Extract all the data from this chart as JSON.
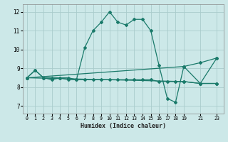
{
  "xlabel": "Humidex (Indice chaleur)",
  "background_color": "#cce8e8",
  "grid_color": "#aacccc",
  "line_color": "#1a7a6a",
  "xlim": [
    -0.5,
    23.8
  ],
  "ylim": [
    6.6,
    12.4
  ],
  "yticks": [
    7,
    8,
    9,
    10,
    11,
    12
  ],
  "xticks": [
    0,
    1,
    2,
    3,
    4,
    5,
    6,
    7,
    8,
    9,
    10,
    11,
    12,
    13,
    14,
    15,
    16,
    17,
    18,
    19,
    21,
    23
  ],
  "series": [
    {
      "x": [
        0,
        1,
        2,
        3,
        4,
        5,
        6,
        7,
        8,
        9,
        10,
        11,
        12,
        13,
        14,
        15,
        16,
        17,
        18,
        19,
        21,
        23
      ],
      "y": [
        8.5,
        8.9,
        8.5,
        8.4,
        8.5,
        8.5,
        8.4,
        10.1,
        11.0,
        11.45,
        12.0,
        11.45,
        11.3,
        11.6,
        11.6,
        11.0,
        9.15,
        7.4,
        7.2,
        9.1,
        8.2,
        9.55
      ]
    },
    {
      "x": [
        0,
        1,
        2,
        3,
        4,
        5,
        6,
        7,
        8,
        9,
        10,
        11,
        12,
        13,
        14,
        15,
        16,
        17,
        18,
        19,
        21,
        23
      ],
      "y": [
        8.5,
        8.9,
        8.5,
        8.5,
        8.5,
        8.4,
        8.4,
        8.4,
        8.4,
        8.4,
        8.4,
        8.4,
        8.4,
        8.4,
        8.4,
        8.4,
        8.3,
        8.3,
        8.3,
        8.3,
        8.2,
        8.2
      ]
    },
    {
      "x": [
        0,
        19,
        21,
        23
      ],
      "y": [
        8.5,
        9.1,
        9.3,
        9.55
      ]
    },
    {
      "x": [
        0,
        19,
        21,
        23
      ],
      "y": [
        8.5,
        8.3,
        8.2,
        8.2
      ]
    }
  ]
}
